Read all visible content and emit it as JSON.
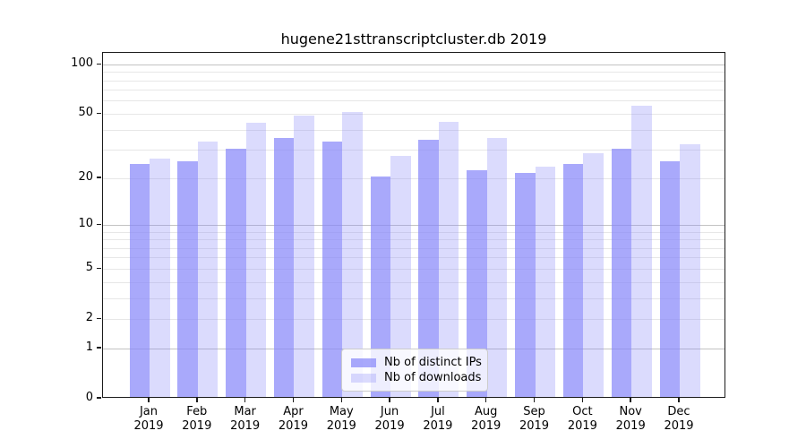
{
  "title": "hugene21sttranscriptcluster.db 2019",
  "chart_data": {
    "type": "bar",
    "title": "hugene21sttranscriptcluster.db 2019",
    "categories": [
      "Jan 2019",
      "Feb 2019",
      "Mar 2019",
      "Apr 2019",
      "May 2019",
      "Jun 2019",
      "Jul 2019",
      "Aug 2019",
      "Sep 2019",
      "Oct 2019",
      "Nov 2019",
      "Dec 2019"
    ],
    "series": [
      {
        "name": "Nb of distinct IPs",
        "color": "rgba(136,136,250,0.72)",
        "values": [
          24,
          25,
          30,
          35,
          33,
          20,
          34,
          22,
          21,
          24,
          30,
          25
        ]
      },
      {
        "name": "Nb of downloads",
        "color": "rgba(136,136,250,0.30)",
        "values": [
          26,
          33,
          43,
          48,
          50,
          27,
          44,
          35,
          23,
          28,
          55,
          32
        ]
      }
    ],
    "xlabel": "",
    "ylabel": "",
    "yscale": "log1p",
    "ylim": [
      0,
      118
    ],
    "yticks": [
      0,
      1,
      2,
      5,
      10,
      20,
      50,
      100
    ],
    "gridlines_major": [
      1,
      10,
      100
    ],
    "gridlines_minor": [
      2,
      3,
      4,
      5,
      6,
      7,
      8,
      9,
      20,
      30,
      40,
      50,
      60,
      70,
      80,
      90
    ],
    "grid": true,
    "legend_position": "bottom-center"
  },
  "colors": {
    "bar_distinct_ips_rendered": "#aaaaf9",
    "bar_downloads_rendered": "#dbdbfd",
    "grid_major": "#c3c3c3",
    "grid_minor": "#e7e7e7",
    "spine": "#1c1c1c",
    "background": "#ffffff",
    "text": "#000000"
  }
}
